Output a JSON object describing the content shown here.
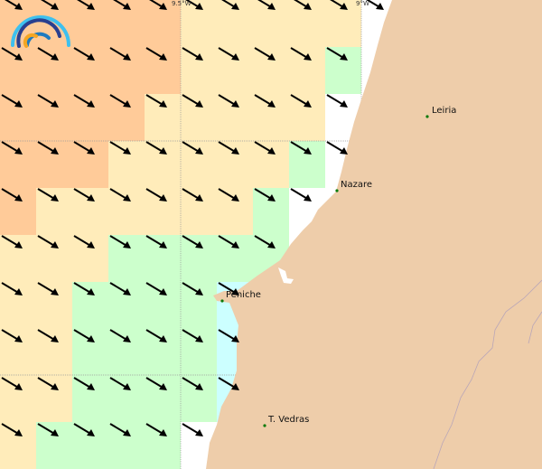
{
  "map": {
    "longitude_labels": [
      "9.5°W",
      "9°W"
    ],
    "cities": [
      {
        "name": "Leiria"
      },
      {
        "name": "Nazare"
      },
      {
        "name": "Peniche"
      },
      {
        "name": "T. Vedras"
      }
    ],
    "colors": {
      "land": "#eecdaa",
      "sea": "#ffffff",
      "orange": "#ffcb99",
      "yellow": "#ffecba",
      "green": "#ccffcc",
      "cyan": "#ccffff",
      "city_dot": "#0a7a0a",
      "arrow": "#000000"
    },
    "grid_legend": "o = orange, y = yellow, g = green, c = cyan, . = uncoloured sea",
    "cells": [
      "oooooyyyyy",
      "oooooyyyyg",
      "ooooyyyyy.",
      "oooyyyyyg.",
      "oyyyyyyg..",
      "yyyggggg..",
      "yyggggc...",
      "yyggggc...",
      "yyggggc...",
      "ygggg....."
    ],
    "wind_direction": "northwest (arrows point southeast)"
  },
  "logo": {
    "name": "weather-service-logo"
  }
}
